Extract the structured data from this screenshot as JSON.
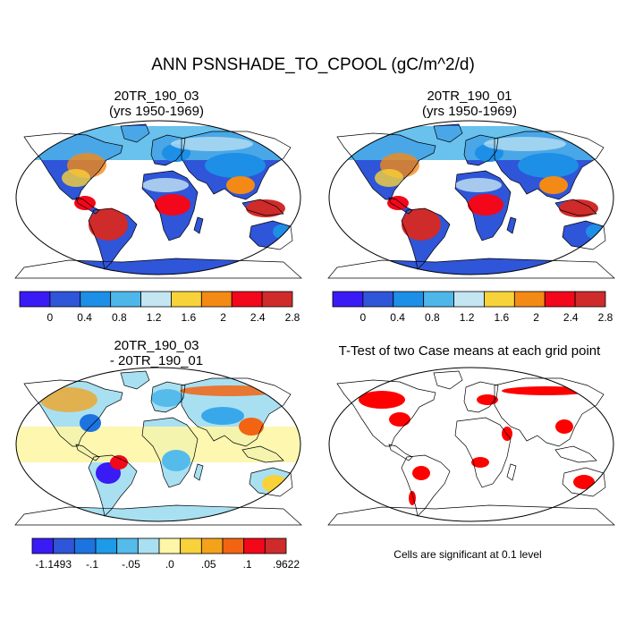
{
  "main_title": "ANN PSNSHADE_TO_CPOOL (gC/m^2/d)",
  "panels": {
    "top_left": {
      "title_line1": "20TR_190_03",
      "title_line2": "(yrs 1950-1969)"
    },
    "top_right": {
      "title_line1": "20TR_190_01",
      "title_line2": "(yrs 1950-1969)"
    },
    "bottom_left": {
      "title_line1": "20TR_190_03",
      "title_line2": "- 20TR_190_01"
    },
    "bottom_right": {
      "title_line1": "T-Test of two Case means at each grid point"
    }
  },
  "colorbar_main": {
    "colors": [
      "#3a1bf5",
      "#2f55d8",
      "#1d8fe6",
      "#4fb6ea",
      "#c4e6f2",
      "#f8d23a",
      "#f48a16",
      "#f3071a",
      "#cf2b2b"
    ],
    "labels": [
      "0",
      "0.4",
      "0.8",
      "1.2",
      "1.6",
      "2",
      "2.4",
      "2.8"
    ]
  },
  "colorbar_diff": {
    "colors": [
      "#3a1bf5",
      "#2f55d8",
      "#1d73e0",
      "#1d9ae8",
      "#55bbea",
      "#a8e0f2",
      "#fdf6a6",
      "#f8d23a",
      "#f4a21a",
      "#f26412",
      "#f3071a",
      "#cf2b2b"
    ],
    "labels": [
      "-1.1493",
      "-.1",
      "-.05",
      ".0",
      ".05",
      ".1",
      ".9622"
    ]
  },
  "significance_note": "Cells are significant at 0.1 level",
  "significance_color": "#ff0000"
}
